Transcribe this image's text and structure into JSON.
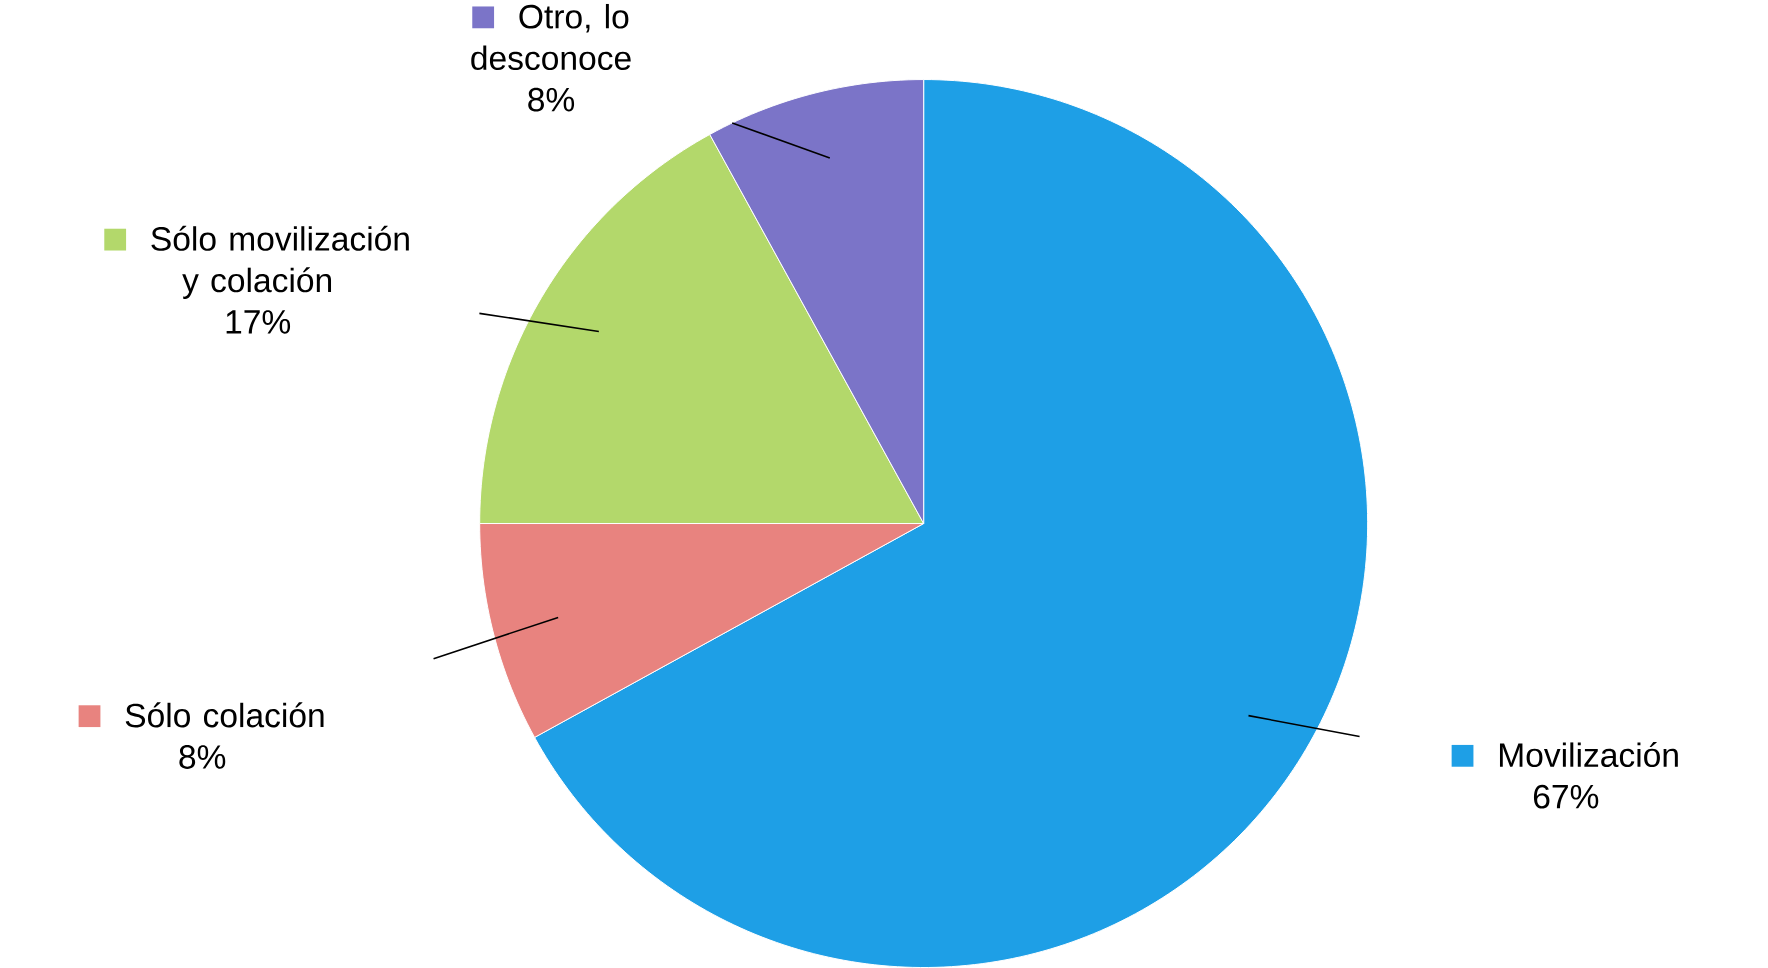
{
  "chart_data": {
    "type": "pie",
    "categories": [
      "Movilización",
      "Sólo colación",
      "Sólo movilización y colación",
      "Otro, lo desconoce"
    ],
    "values": [
      67,
      8,
      17,
      8
    ],
    "value_labels": [
      "67%",
      "8%",
      "17%",
      "8%"
    ],
    "colors": [
      "#1e9fe6",
      "#e8837f",
      "#b3d86b",
      "#7b74c8"
    ],
    "legend": "top left"
  }
}
